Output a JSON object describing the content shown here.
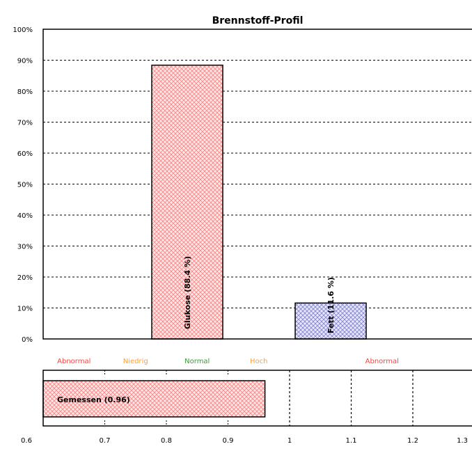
{
  "chart_data": [
    {
      "type": "bar",
      "title": "Brennstoff-Profil",
      "categories": [
        "Glukose",
        "Fett"
      ],
      "values": [
        88.4,
        11.6
      ],
      "bar_labels": [
        "Glukose  (88.4 %)",
        "Fett  (11.6 %)"
      ],
      "colors": [
        "#ff8080",
        "#8080d0"
      ],
      "ylim": [
        0,
        100
      ],
      "yticks": [
        "0%",
        "10%",
        "20%",
        "30%",
        "40%",
        "50%",
        "60%",
        "70%",
        "80%",
        "90%",
        "100%"
      ],
      "grid": true
    },
    {
      "type": "bar",
      "orientation": "horizontal",
      "xlim": [
        0.6,
        1.3
      ],
      "xticks": [
        "0.6",
        "0.7",
        "0.8",
        "0.9",
        "1",
        "1.1",
        "1.2",
        "1.3"
      ],
      "zones": [
        {
          "label": "Abnormal",
          "color": "#ff4040",
          "from": 0.6,
          "to": 0.7
        },
        {
          "label": "Niedrig",
          "color": "#ffa030",
          "from": 0.7,
          "to": 0.8
        },
        {
          "label": "Normal",
          "color": "#30a030",
          "from": 0.8,
          "to": 0.9
        },
        {
          "label": "Hoch",
          "color": "#ffa030",
          "from": 0.9,
          "to": 1.0
        },
        {
          "label": "Abnormal",
          "color": "#ff4040",
          "from": 1.0,
          "to": 1.3
        }
      ],
      "zone_boundaries": [
        1.0,
        1.1,
        1.2
      ],
      "measured": {
        "label": "Gemessen  (0.96)",
        "value": 0.96,
        "color": "#ff8080"
      }
    }
  ]
}
